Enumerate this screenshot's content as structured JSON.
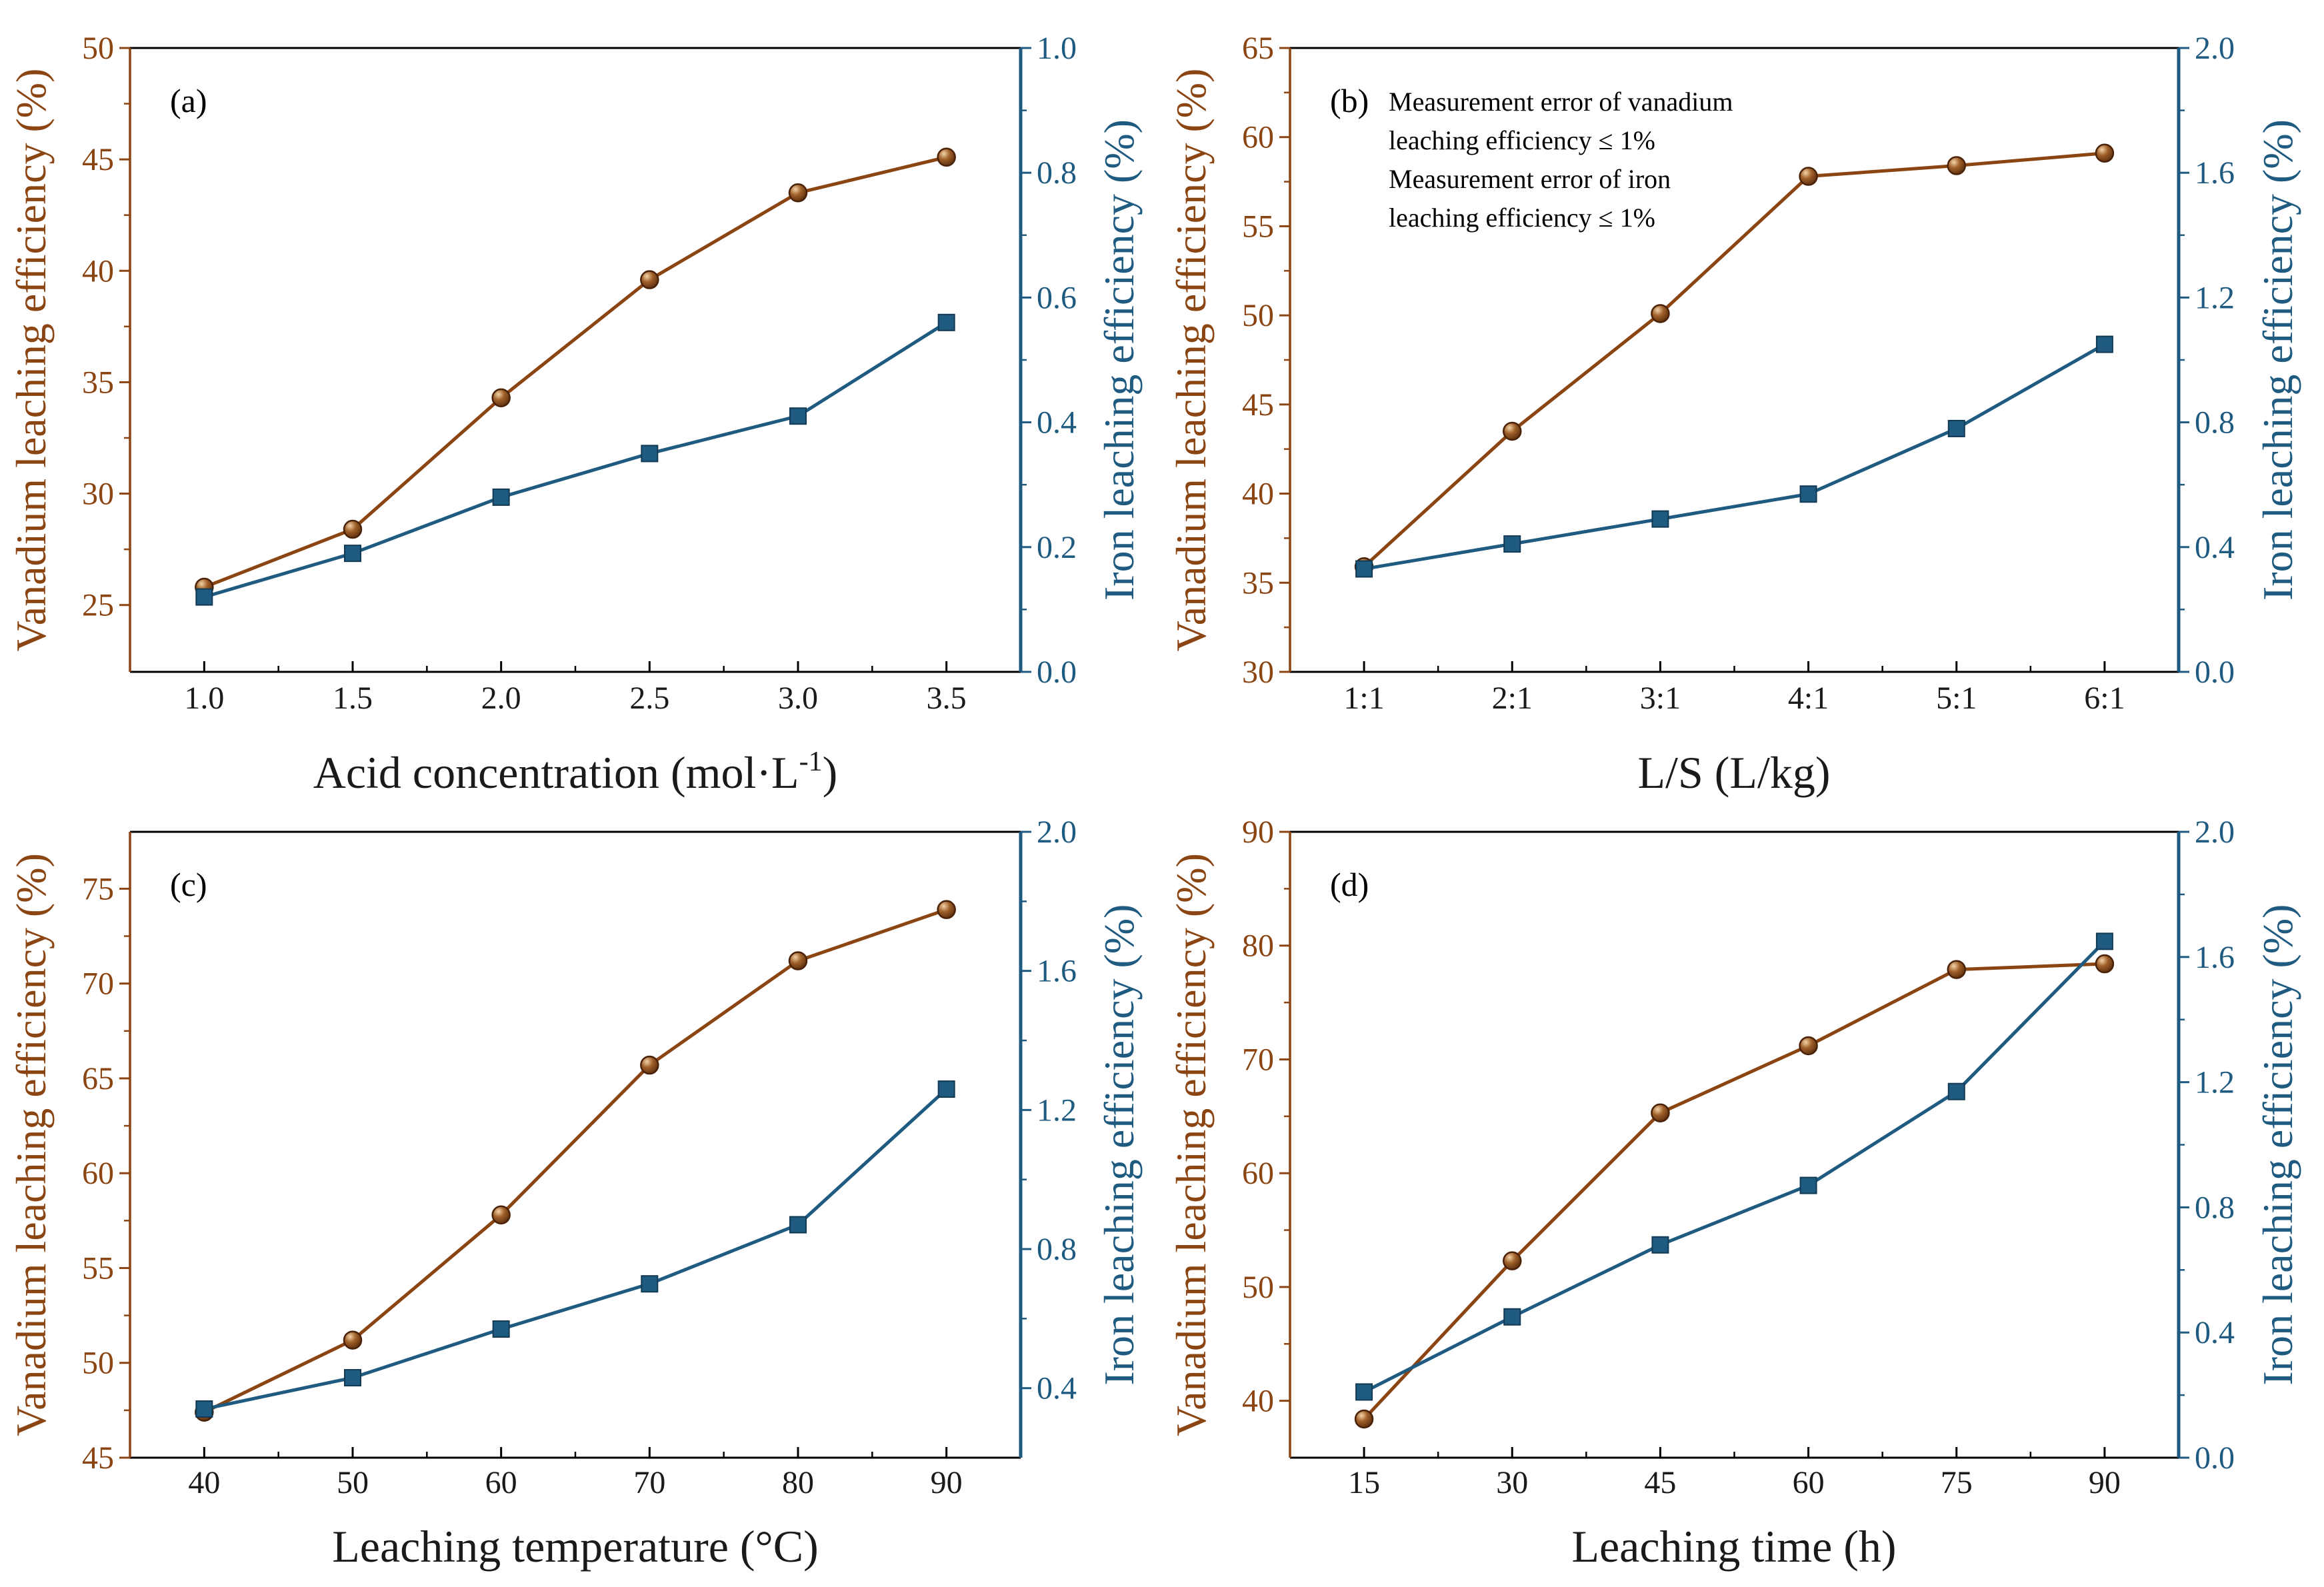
{
  "colors": {
    "vanadium": "#8B4513",
    "iron": "#1F5A80",
    "axis_dark": "#000000"
  },
  "chart_data": [
    {
      "id": "a",
      "type": "line",
      "panel_label": "(a)",
      "xlabel_main": "Acid concentration (mol·L",
      "xlabel_sup": "-1",
      "xlabel_end": ")",
      "ylabel_left": "Vanadium leaching efficiency (%)",
      "ylabel_right": "Iron leaching efficiency (%)",
      "x_range": [
        0.75,
        3.75
      ],
      "x_ticks": [
        1.0,
        1.5,
        2.0,
        2.5,
        3.0,
        3.5
      ],
      "x_tick_labels": [
        "1.0",
        "1.5",
        "2.0",
        "2.5",
        "3.0",
        "3.5"
      ],
      "ylim_left": [
        22,
        50
      ],
      "yticks_left": [
        25,
        30,
        35,
        40,
        45,
        50
      ],
      "ylim_right": [
        0.0,
        1.0
      ],
      "yticks_right": [
        0.0,
        0.2,
        0.4,
        0.6,
        0.8,
        1.0
      ],
      "right_decimals": 1,
      "series": [
        {
          "name": "Vanadium leaching efficiency",
          "axis": "left",
          "marker": "circle",
          "x": [
            1.0,
            1.5,
            2.0,
            2.5,
            3.0,
            3.5
          ],
          "values": [
            25.8,
            28.4,
            34.3,
            39.6,
            43.5,
            45.1
          ]
        },
        {
          "name": "Iron leaching efficiency",
          "axis": "right",
          "marker": "square",
          "x": [
            1.0,
            1.5,
            2.0,
            2.5,
            3.0,
            3.5
          ],
          "values": [
            0.12,
            0.19,
            0.28,
            0.35,
            0.41,
            0.56
          ]
        }
      ]
    },
    {
      "id": "b",
      "type": "line",
      "panel_label": "(b)",
      "xlabel_main": "L/S (L/kg)",
      "xlabel_sup": "",
      "xlabel_end": "",
      "ylabel_left": "Vanadium leaching efficiency (%)",
      "ylabel_right": "Iron leaching efficiency (%)",
      "x_range": [
        0.5,
        6.5
      ],
      "x_ticks": [
        1,
        2,
        3,
        4,
        5,
        6
      ],
      "x_tick_labels": [
        "1:1",
        "2:1",
        "3:1",
        "4:1",
        "5:1",
        "6:1"
      ],
      "ylim_left": [
        30,
        65
      ],
      "yticks_left": [
        30,
        35,
        40,
        45,
        50,
        55,
        60,
        65
      ],
      "ylim_right": [
        0.0,
        2.0
      ],
      "yticks_right": [
        0.0,
        0.4,
        0.8,
        1.2,
        1.6,
        2.0
      ],
      "right_decimals": 1,
      "annotations": [
        "Measurement error of vanadium",
        "leaching efficiency ≤ 1%",
        "Measurement error of iron",
        "leaching efficiency ≤ 1%"
      ],
      "series": [
        {
          "name": "Vanadium leaching efficiency",
          "axis": "left",
          "marker": "circle",
          "x": [
            1,
            2,
            3,
            4,
            5,
            6
          ],
          "values": [
            35.9,
            43.5,
            50.1,
            57.8,
            58.4,
            59.1
          ]
        },
        {
          "name": "Iron leaching efficiency",
          "axis": "right",
          "marker": "square",
          "x": [
            1,
            2,
            3,
            4,
            5,
            6
          ],
          "values": [
            0.33,
            0.41,
            0.49,
            0.57,
            0.78,
            1.05
          ]
        }
      ]
    },
    {
      "id": "c",
      "type": "line",
      "panel_label": "(c)",
      "xlabel_main": "Leaching temperature (°C)",
      "xlabel_sup": "",
      "xlabel_end": "",
      "ylabel_left": "Vanadium leaching efficiency (%)",
      "ylabel_right": "Iron leaching efficiency (%)",
      "x_range": [
        35,
        95
      ],
      "x_ticks": [
        40,
        50,
        60,
        70,
        80,
        90
      ],
      "x_tick_labels": [
        "40",
        "50",
        "60",
        "70",
        "80",
        "90"
      ],
      "ylim_left": [
        45,
        78
      ],
      "yticks_left": [
        45,
        50,
        55,
        60,
        65,
        70,
        75
      ],
      "ylim_right": [
        0.2,
        2.0
      ],
      "yticks_right": [
        0.4,
        0.8,
        1.2,
        1.6,
        2.0
      ],
      "right_decimals": 1,
      "series": [
        {
          "name": "Vanadium leaching efficiency",
          "axis": "left",
          "marker": "circle",
          "x": [
            40,
            50,
            60,
            70,
            80,
            90
          ],
          "values": [
            47.4,
            51.2,
            57.8,
            65.7,
            71.2,
            73.9
          ]
        },
        {
          "name": "Iron leaching efficiency",
          "axis": "right",
          "marker": "square",
          "x": [
            40,
            50,
            60,
            70,
            80,
            90
          ],
          "values": [
            0.34,
            0.43,
            0.57,
            0.7,
            0.87,
            1.26
          ]
        }
      ]
    },
    {
      "id": "d",
      "type": "line",
      "panel_label": "(d)",
      "xlabel_main": "Leaching time (h)",
      "xlabel_sup": "",
      "xlabel_end": "",
      "ylabel_left": "Vanadium leaching efficiency (%)",
      "ylabel_right": "Iron leaching efficiency (%)",
      "x_range": [
        7.5,
        97.5
      ],
      "x_ticks": [
        15,
        30,
        45,
        60,
        75,
        90
      ],
      "x_tick_labels": [
        "15",
        "30",
        "45",
        "60",
        "75",
        "90"
      ],
      "ylim_left": [
        35,
        90
      ],
      "yticks_left": [
        40,
        50,
        60,
        70,
        80,
        90
      ],
      "ylim_right": [
        0.0,
        2.0
      ],
      "yticks_right": [
        0.0,
        0.4,
        0.8,
        1.2,
        1.6,
        2.0
      ],
      "right_decimals": 1,
      "series": [
        {
          "name": "Vanadium leaching efficiency",
          "axis": "left",
          "marker": "circle",
          "x": [
            15,
            30,
            45,
            60,
            75,
            90
          ],
          "values": [
            38.4,
            52.3,
            65.3,
            71.2,
            77.9,
            78.4
          ]
        },
        {
          "name": "Iron leaching efficiency",
          "axis": "right",
          "marker": "square",
          "x": [
            15,
            30,
            45,
            60,
            75,
            90
          ],
          "values": [
            0.21,
            0.45,
            0.68,
            0.87,
            1.17,
            1.65
          ]
        }
      ]
    }
  ]
}
